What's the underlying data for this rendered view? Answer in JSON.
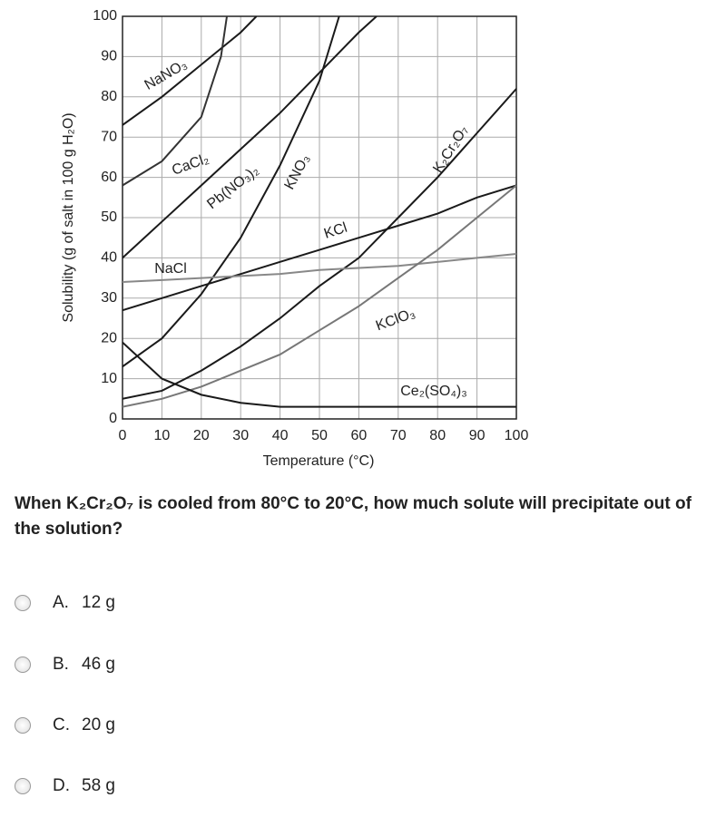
{
  "chart_data": {
    "type": "line",
    "x_label": "Temperature (°C)",
    "y_label": "Solubility (g of salt in 100 g H₂O)",
    "xlim": [
      0,
      100
    ],
    "xticks": [
      0,
      10,
      20,
      30,
      40,
      50,
      60,
      70,
      80,
      90,
      100
    ],
    "ylim": [
      0,
      100
    ],
    "yticks": [
      0,
      10,
      20,
      30,
      40,
      50,
      60,
      70,
      80,
      90,
      100
    ],
    "grid": true,
    "series": [
      {
        "name": "NaNO₃",
        "color": "#1a1a1a",
        "x": [
          0,
          10,
          20,
          30,
          34
        ],
        "values": [
          73,
          80,
          88,
          96,
          100
        ]
      },
      {
        "name": "CaCl₂",
        "color": "#333333",
        "x": [
          0,
          10,
          20,
          25,
          26.5
        ],
        "values": [
          58,
          64,
          75,
          90,
          100
        ]
      },
      {
        "name": "Pb(NO₃)₂",
        "color": "#1a1a1a",
        "x": [
          0,
          10,
          20,
          30,
          40,
          50,
          60,
          64.5
        ],
        "values": [
          40,
          49,
          58,
          67,
          76,
          86,
          96,
          100
        ]
      },
      {
        "name": "KNO₃",
        "color": "#1a1a1a",
        "x": [
          0,
          10,
          20,
          30,
          40,
          50,
          55
        ],
        "values": [
          13,
          20,
          31,
          45,
          63,
          84,
          100
        ]
      },
      {
        "name": "K₂Cr₂O₇",
        "color": "#1a1a1a",
        "x": [
          0,
          10,
          20,
          30,
          40,
          50,
          60,
          70,
          80,
          90,
          100
        ],
        "values": [
          5,
          7,
          12,
          18,
          25,
          33,
          40,
          50,
          60,
          71,
          82
        ]
      },
      {
        "name": "KCl",
        "color": "#1a1a1a",
        "x": [
          0,
          10,
          20,
          30,
          40,
          50,
          60,
          70,
          80,
          90,
          100
        ],
        "values": [
          27,
          30,
          33,
          36,
          39,
          42,
          45,
          48,
          51,
          55,
          58
        ]
      },
      {
        "name": "NaCl",
        "color": "#888888",
        "x": [
          0,
          10,
          20,
          30,
          40,
          50,
          60,
          70,
          80,
          90,
          100
        ],
        "values": [
          34,
          34.5,
          35,
          35.5,
          36,
          37,
          37.5,
          38,
          39,
          40,
          41
        ]
      },
      {
        "name": "KClO₃",
        "color": "#777777",
        "x": [
          0,
          10,
          20,
          30,
          40,
          50,
          60,
          70,
          80,
          90,
          100
        ],
        "values": [
          3,
          5,
          8,
          12,
          16,
          22,
          28,
          35,
          42,
          50,
          58
        ]
      },
      {
        "name": "Ce₂(SO₄)₃",
        "color": "#1a1a1a",
        "x": [
          0,
          10,
          20,
          30,
          40,
          50,
          60,
          70,
          80,
          90,
          100
        ],
        "values": [
          19,
          10,
          6,
          4,
          3,
          3,
          3,
          3,
          3,
          3,
          3
        ]
      }
    ]
  },
  "question": "When K₂Cr₂O₇ is cooled from 80°C to 20°C, how much solute will precipitate out of the solution?",
  "options": [
    {
      "letter": "A.",
      "text": "12 g"
    },
    {
      "letter": "B.",
      "text": "46 g"
    },
    {
      "letter": "C.",
      "text": "20 g"
    },
    {
      "letter": "D.",
      "text": "58 g"
    }
  ]
}
